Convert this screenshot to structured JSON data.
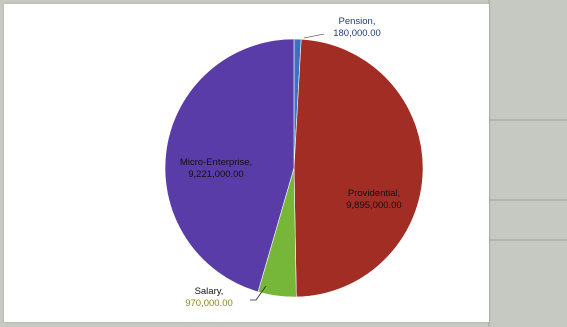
{
  "chart_data": {
    "type": "pie",
    "title": "",
    "slices": [
      {
        "label": "Pension,",
        "value": 180000,
        "value_text": "180,000.00",
        "color": "#3a6fc4",
        "text_color": "#1f3f7a"
      },
      {
        "label": "Providential,",
        "value": 9895000,
        "value_text": "9,895,000.00",
        "color": "#a12d24",
        "text_color": "#111111"
      },
      {
        "label": "Salary,",
        "value": 970000,
        "value_text": "970,000.00",
        "color": "#76b73a",
        "text_color": "#111111",
        "value_color": "#8a8a1a"
      },
      {
        "label": "Micro-Enterprise,",
        "value": 9221000,
        "value_text": "9,221,000.00",
        "color": "#5a3ca8",
        "text_color": "#111111"
      }
    ],
    "start_angle_deg": -90,
    "direction": "clockwise"
  },
  "background": {
    "doc_color": "#c9ccc4",
    "card_color": "#ffffff"
  }
}
